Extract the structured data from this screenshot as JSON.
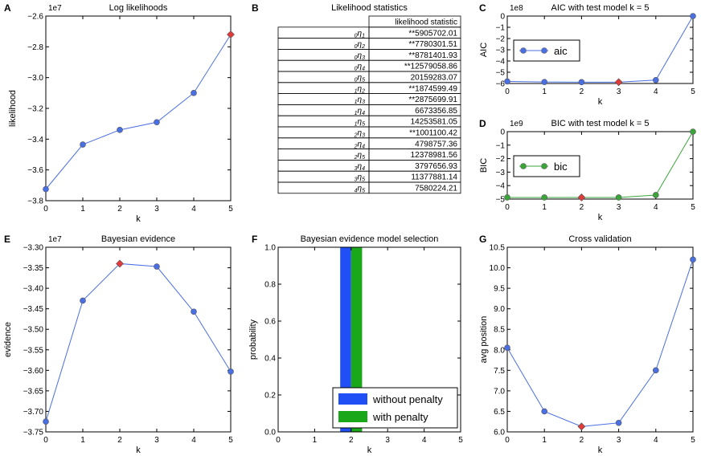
{
  "chart_data": [
    {
      "panel": "A",
      "type": "line",
      "title": "Log likelihoods",
      "xlabel": "k",
      "ylabel": "likelihood",
      "scale_label": "1e7",
      "x": [
        0,
        1,
        2,
        3,
        4,
        5
      ],
      "y": [
        -3.725,
        -3.435,
        -3.34,
        -3.29,
        -3.1,
        -2.72
      ],
      "highlight_index": 5,
      "xlim": [
        0,
        5
      ],
      "ylim": [
        -3.8,
        -2.6
      ],
      "xticks": [
        "0",
        "1",
        "2",
        "3",
        "4",
        "5"
      ],
      "yticks": [
        -3.8,
        -3.6,
        -3.4,
        -3.2,
        -3.0,
        -2.8,
        -2.6
      ],
      "ytick_labels": [
        "−3.8",
        "−3.6",
        "−3.4",
        "−3.2",
        "−3.0",
        "−2.8",
        "−2.6"
      ],
      "color": "#4a6fe3"
    },
    {
      "panel": "B",
      "type": "table",
      "title": "Likelihood statistics",
      "column_header": "likelihood statistic",
      "rows": [
        {
          "sub": "0",
          "sym": "η",
          "idx": "1",
          "value": "**5905702.01"
        },
        {
          "sub": "0",
          "sym": "η",
          "idx": "2",
          "value": "**7780301.51"
        },
        {
          "sub": "0",
          "sym": "η",
          "idx": "3",
          "value": "**8781401.93"
        },
        {
          "sub": "0",
          "sym": "η",
          "idx": "4",
          "value": "**12579058.86"
        },
        {
          "sub": "0",
          "sym": "η",
          "idx": "5",
          "value": "20159283.07"
        },
        {
          "sub": "1",
          "sym": "η",
          "idx": "2",
          "value": "**1874599.49"
        },
        {
          "sub": "1",
          "sym": "η",
          "idx": "3",
          "value": "**2875699.91"
        },
        {
          "sub": "1",
          "sym": "η",
          "idx": "4",
          "value": "6673356.85"
        },
        {
          "sub": "1",
          "sym": "η",
          "idx": "5",
          "value": "14253581.05"
        },
        {
          "sub": "2",
          "sym": "η",
          "idx": "3",
          "value": "**1001100.42"
        },
        {
          "sub": "2",
          "sym": "η",
          "idx": "4",
          "value": "4798757.36"
        },
        {
          "sub": "2",
          "sym": "η",
          "idx": "5",
          "value": "12378981.56"
        },
        {
          "sub": "3",
          "sym": "η",
          "idx": "4",
          "value": "3797656.93"
        },
        {
          "sub": "3",
          "sym": "η",
          "idx": "5",
          "value": "11377881.14"
        },
        {
          "sub": "4",
          "sym": "η",
          "idx": "5",
          "value": "7580224.21"
        }
      ]
    },
    {
      "panel": "C",
      "type": "line",
      "title": "AIC with test model k = 5",
      "xlabel": "k",
      "ylabel": "AIC",
      "scale_label": "1e8",
      "x": [
        0,
        1,
        2,
        3,
        4,
        5
      ],
      "y": [
        -5.82,
        -5.87,
        -5.88,
        -5.88,
        -5.7,
        0.0
      ],
      "highlight_index": 3,
      "xlim": [
        0,
        5
      ],
      "ylim": [
        -6,
        0
      ],
      "xticks": [
        "0",
        "1",
        "2",
        "3",
        "4",
        "5"
      ],
      "yticks": [
        -6,
        -5,
        -4,
        -3,
        -2,
        -1,
        0
      ],
      "ytick_labels": [
        "−6",
        "−5",
        "−4",
        "−3",
        "−2",
        "−1",
        "0"
      ],
      "legend": "aic",
      "color": "#4a6fe3"
    },
    {
      "panel": "D",
      "type": "line",
      "title": "BIC with test model k = 5",
      "xlabel": "k",
      "ylabel": "BIC",
      "scale_label": "1e9",
      "x": [
        0,
        1,
        2,
        3,
        4,
        5
      ],
      "y": [
        -4.88,
        -4.88,
        -4.88,
        -4.88,
        -4.7,
        0.0
      ],
      "highlight_index": 2,
      "xlim": [
        0,
        5
      ],
      "ylim": [
        -5,
        0
      ],
      "xticks": [
        "0",
        "1",
        "2",
        "3",
        "4",
        "5"
      ],
      "yticks": [
        -5,
        -4,
        -3,
        -2,
        -1,
        0
      ],
      "ytick_labels": [
        "−5",
        "−4",
        "−3",
        "−2",
        "−1",
        "0"
      ],
      "legend": "bic",
      "color": "#3aa63a"
    },
    {
      "panel": "E",
      "type": "line",
      "title": "Bayesian evidence",
      "xlabel": "k",
      "ylabel": "evidence",
      "scale_label": "1e7",
      "x": [
        0,
        1,
        2,
        3,
        4,
        5
      ],
      "y": [
        -3.725,
        -3.43,
        -3.34,
        -3.347,
        -3.457,
        -3.603
      ],
      "highlight_index": 2,
      "xlim": [
        0,
        5
      ],
      "ylim": [
        -3.75,
        -3.3
      ],
      "xticks": [
        "0",
        "1",
        "2",
        "3",
        "4",
        "5"
      ],
      "yticks": [
        -3.75,
        -3.7,
        -3.65,
        -3.6,
        -3.55,
        -3.5,
        -3.45,
        -3.4,
        -3.35,
        -3.3
      ],
      "ytick_labels": [
        "−3.75",
        "−3.70",
        "−3.65",
        "−3.60",
        "−3.55",
        "−3.50",
        "−3.45",
        "−3.40",
        "−3.35",
        "−3.30"
      ],
      "color": "#4a6fe3"
    },
    {
      "panel": "F",
      "type": "bar",
      "title": "Bayesian evidence model selection",
      "xlabel": "k",
      "ylabel": "probability",
      "xlim": [
        0,
        5
      ],
      "ylim": [
        0,
        1.0
      ],
      "xticks": [
        "0",
        "1",
        "2",
        "3",
        "4",
        "5"
      ],
      "yticks": [
        0,
        0.2,
        0.4,
        0.6,
        0.8,
        1.0
      ],
      "ytick_labels": [
        "0.0",
        "0.2",
        "0.4",
        "0.6",
        "0.8",
        "1.0"
      ],
      "series": [
        {
          "name": "without penalty",
          "x": 2,
          "value": 1.0,
          "color": "#1f4ff5"
        },
        {
          "name": "with penalty",
          "x": 2,
          "value": 1.0,
          "color": "#1aa81a"
        }
      ]
    },
    {
      "panel": "G",
      "type": "line",
      "title": "Cross validation",
      "xlabel": "k",
      "ylabel": "avg position",
      "x": [
        0,
        1,
        2,
        3,
        4,
        5
      ],
      "y": [
        8.05,
        6.5,
        6.13,
        6.22,
        7.5,
        10.2
      ],
      "highlight_index": 2,
      "xlim": [
        0,
        5
      ],
      "ylim": [
        6.0,
        10.5
      ],
      "xticks": [
        "0",
        "1",
        "2",
        "3",
        "4",
        "5"
      ],
      "yticks": [
        6.0,
        6.5,
        7.0,
        7.5,
        8.0,
        8.5,
        9.0,
        9.5,
        10.0,
        10.5
      ],
      "ytick_labels": [
        "6.0",
        "6.5",
        "7.0",
        "7.5",
        "8.0",
        "8.5",
        "9.0",
        "9.5",
        "10.0",
        "10.5"
      ],
      "color": "#4a6fe3"
    }
  ],
  "highlight_color": "#e03a3a"
}
